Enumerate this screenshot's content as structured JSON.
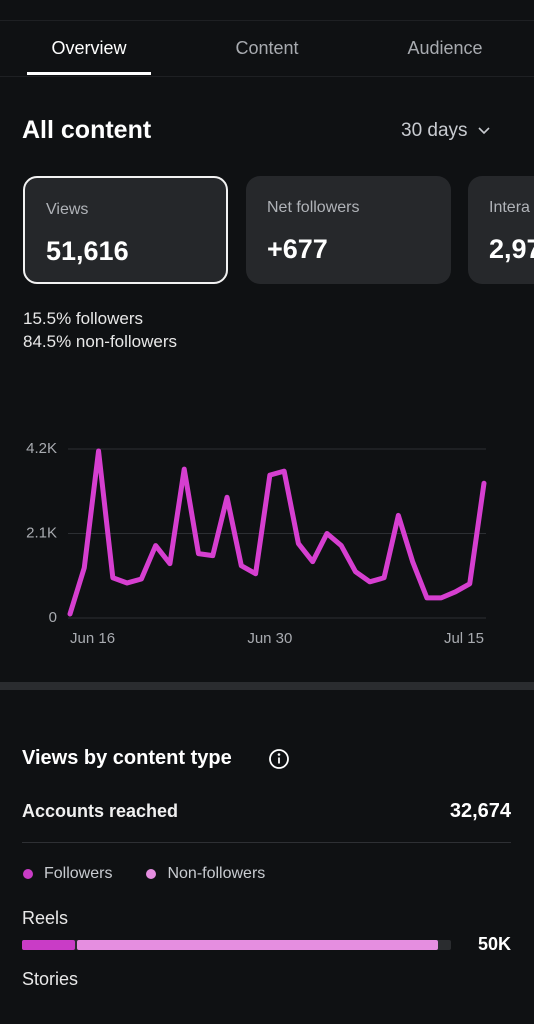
{
  "tabs": [
    "Overview",
    "Content",
    "Audience"
  ],
  "header": {
    "title": "All content",
    "period": "30 days"
  },
  "cards": [
    {
      "label": "Views",
      "value": "51,616"
    },
    {
      "label": "Net followers",
      "value": "+677"
    },
    {
      "label": "Intera",
      "value": "2,97"
    }
  ],
  "audience_split": [
    "15.5% followers",
    "84.5% non-followers"
  ],
  "chart_data": {
    "type": "line",
    "x": [
      "Jun 16",
      null,
      null,
      null,
      null,
      null,
      null,
      null,
      null,
      null,
      null,
      null,
      null,
      null,
      "Jun 30",
      null,
      null,
      null,
      null,
      null,
      null,
      null,
      null,
      null,
      null,
      null,
      null,
      null,
      null,
      "Jul 15"
    ],
    "series": [
      {
        "color": "#d63fd0",
        "values": [
          100,
          1250,
          4150,
          1000,
          870,
          970,
          1800,
          1350,
          3700,
          1600,
          1550,
          3000,
          1300,
          1100,
          3550,
          3650,
          1850,
          1400,
          2100,
          1800,
          1150,
          900,
          1000,
          2550,
          1400,
          500,
          500,
          650,
          850,
          3350
        ]
      }
    ],
    "ylim": [
      0,
      4200
    ],
    "yticks": [
      0,
      {
        "value": 2100,
        "label": "2.1K"
      },
      {
        "value": 4200,
        "label": "4.2K"
      }
    ],
    "grid": true
  },
  "content_type": {
    "title": "Views by content type",
    "metric_label": "Accounts reached",
    "metric_value": "32,674",
    "legend": [
      {
        "name": "Followers",
        "color": "#c93cc6"
      },
      {
        "name": "Non-followers",
        "color": "#e58ee0"
      }
    ],
    "xlim": [
      0,
      51616
    ],
    "rows": [
      {
        "label": "Reels",
        "followers": 6400,
        "non_followers": 43600,
        "value_label": "50K"
      },
      {
        "label": "Stories"
      }
    ]
  }
}
